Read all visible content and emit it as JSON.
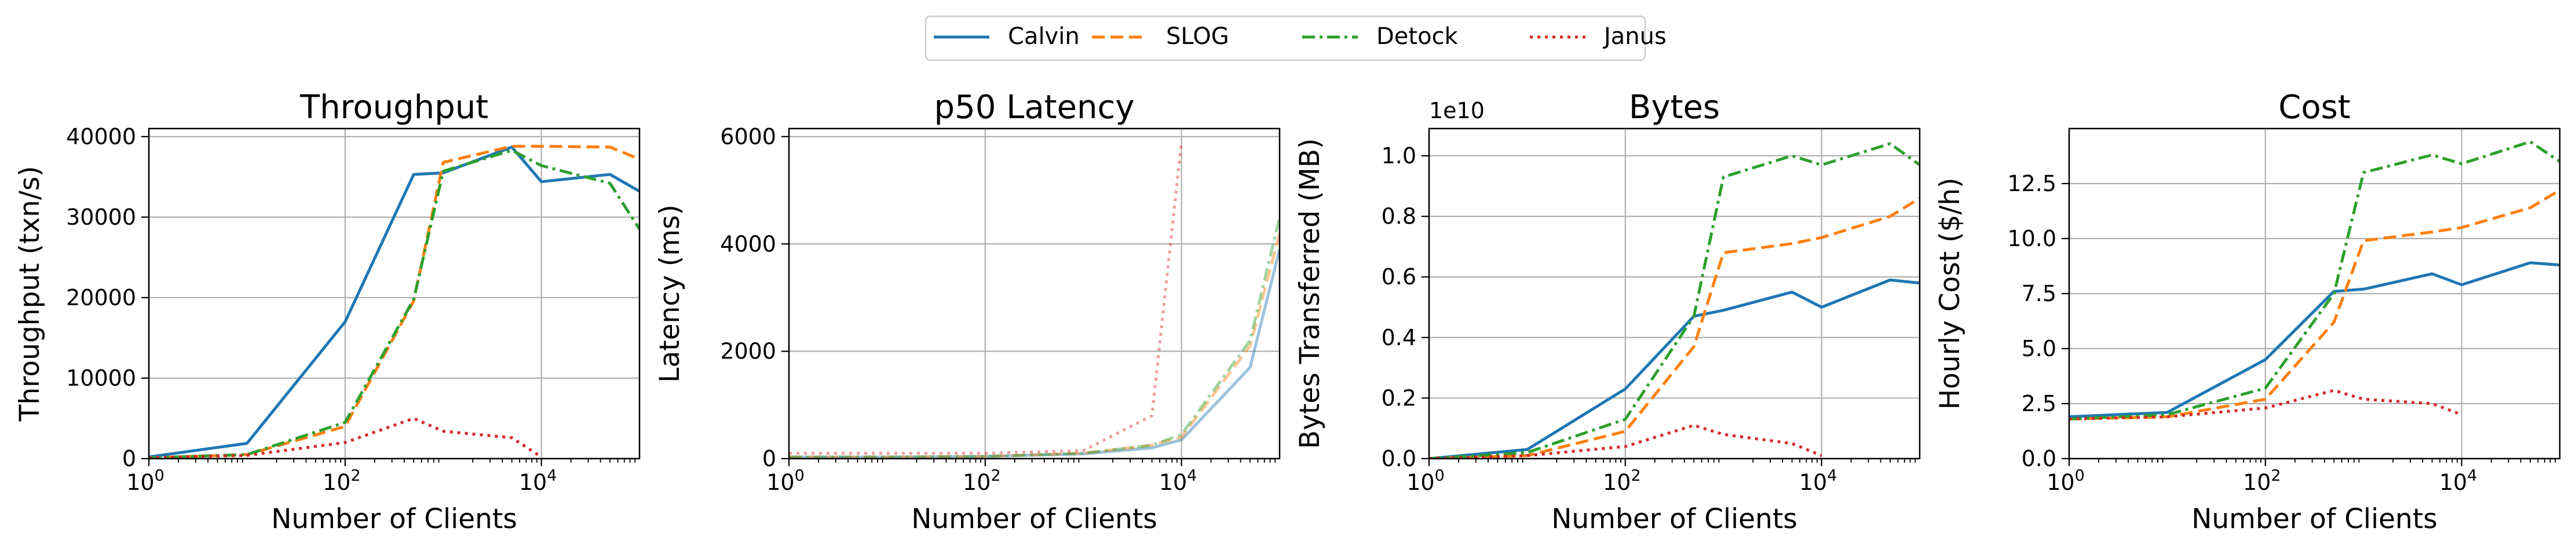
{
  "legend": {
    "items": [
      {
        "label": "Calvin",
        "color": "#1f77b4",
        "dash": "solid"
      },
      {
        "label": "SLOG",
        "color": "#ff7f0e",
        "dash": "dashed"
      },
      {
        "label": "Detock",
        "color": "#2ca02c",
        "dash": "dashdot"
      },
      {
        "label": "Janus",
        "color": "#d62728",
        "dash": "dotted"
      }
    ],
    "placement": "top-center"
  },
  "chart_data": [
    {
      "type": "line",
      "title": "Throughput",
      "xlabel": "Number of Clients",
      "ylabel": "Throughput (txn/s)",
      "xscale": "log",
      "xlim": [
        1,
        100000
      ],
      "ylim": [
        0,
        41000
      ],
      "grid": true,
      "xticks": [
        {
          "value": 1,
          "base": "10",
          "exp": "0"
        },
        {
          "value": 100,
          "base": "10",
          "exp": "2"
        },
        {
          "value": 10000,
          "base": "10",
          "exp": "4"
        }
      ],
      "yticks": [
        {
          "value": 0,
          "label": "0"
        },
        {
          "value": 10000,
          "label": "10000"
        },
        {
          "value": 20000,
          "label": "20000"
        },
        {
          "value": 30000,
          "label": "30000"
        },
        {
          "value": 40000,
          "label": "40000"
        }
      ],
      "offset_label": "",
      "series": [
        {
          "name": "Calvin",
          "color": "#1f77b4",
          "dash": "solid",
          "alpha": 1,
          "x": [
            1,
            10,
            100,
            500,
            1000,
            5000,
            10000,
            50000,
            100000
          ],
          "y": [
            200,
            1900,
            17000,
            35300,
            35500,
            38700,
            34400,
            35300,
            33200
          ]
        },
        {
          "name": "SLOG",
          "color": "#ff7f0e",
          "dash": "dashed",
          "alpha": 1,
          "x": [
            1,
            10,
            100,
            500,
            1000,
            5000,
            10000,
            50000,
            100000
          ],
          "y": [
            100,
            500,
            4000,
            19600,
            36800,
            38800,
            38800,
            38700,
            37200
          ]
        },
        {
          "name": "Detock",
          "color": "#2ca02c",
          "dash": "dashdot",
          "alpha": 1,
          "x": [
            1,
            10,
            100,
            500,
            1000,
            5000,
            10000,
            50000,
            100000
          ],
          "y": [
            100,
            500,
            4500,
            19800,
            35700,
            38300,
            36400,
            34200,
            28500
          ]
        },
        {
          "name": "Janus",
          "color": "#d62728",
          "dash": "dotted",
          "alpha": 1,
          "x": [
            1,
            10,
            100,
            500,
            1000,
            5000,
            10000
          ],
          "y": [
            100,
            400,
            2000,
            5000,
            3400,
            2600,
            200
          ]
        }
      ]
    },
    {
      "type": "line",
      "title": "p50 Latency",
      "xlabel": "Number of Clients",
      "ylabel": "Latency (ms)",
      "xscale": "log",
      "xlim": [
        1,
        100000
      ],
      "ylim": [
        0,
        6150
      ],
      "grid": true,
      "xticks": [
        {
          "value": 1,
          "base": "10",
          "exp": "0"
        },
        {
          "value": 100,
          "base": "10",
          "exp": "2"
        },
        {
          "value": 10000,
          "base": "10",
          "exp": "4"
        }
      ],
      "yticks": [
        {
          "value": 0,
          "label": "0"
        },
        {
          "value": 2000,
          "label": "2000"
        },
        {
          "value": 4000,
          "label": "4000"
        },
        {
          "value": 6000,
          "label": "6000"
        }
      ],
      "offset_label": "",
      "series": [
        {
          "name": "Calvin",
          "color": "#1f77b4",
          "dash": "solid",
          "alpha": 0.45,
          "x": [
            1,
            10,
            100,
            1000,
            5000,
            10000,
            50000,
            100000
          ],
          "y": [
            30,
            30,
            40,
            90,
            200,
            350,
            1700,
            3900
          ]
        },
        {
          "name": "SLOG",
          "color": "#ff7f0e",
          "dash": "dashed",
          "alpha": 0.45,
          "x": [
            1,
            10,
            100,
            1000,
            5000,
            10000,
            50000,
            100000
          ],
          "y": [
            30,
            30,
            40,
            100,
            250,
            400,
            2100,
            4200
          ]
        },
        {
          "name": "Detock",
          "color": "#2ca02c",
          "dash": "dashdot",
          "alpha": 0.45,
          "x": [
            1,
            10,
            100,
            1000,
            5000,
            10000,
            50000,
            100000
          ],
          "y": [
            30,
            30,
            40,
            100,
            250,
            450,
            2200,
            4500
          ]
        },
        {
          "name": "Janus",
          "color": "#d62728",
          "dash": "dotted",
          "alpha": 0.45,
          "x": [
            1,
            10,
            100,
            1000,
            5000,
            10000
          ],
          "y": [
            100,
            100,
            100,
            150,
            800,
            5900
          ]
        }
      ]
    },
    {
      "type": "line",
      "title": "Bytes",
      "xlabel": "Number of Clients",
      "ylabel": "Bytes Transferred (MB)",
      "xscale": "log",
      "xlim": [
        1,
        100000
      ],
      "ylim": [
        0,
        1.09
      ],
      "grid": true,
      "xticks": [
        {
          "value": 1,
          "base": "10",
          "exp": "0"
        },
        {
          "value": 100,
          "base": "10",
          "exp": "2"
        },
        {
          "value": 10000,
          "base": "10",
          "exp": "4"
        }
      ],
      "yticks": [
        {
          "value": 0,
          "label": "0.0"
        },
        {
          "value": 0.2,
          "label": "0.2"
        },
        {
          "value": 0.4,
          "label": "0.4"
        },
        {
          "value": 0.6,
          "label": "0.6"
        },
        {
          "value": 0.8,
          "label": "0.8"
        },
        {
          "value": 1.0,
          "label": "1.0"
        }
      ],
      "offset_label": "1e10",
      "series": [
        {
          "name": "Calvin",
          "color": "#1f77b4",
          "dash": "solid",
          "alpha": 1,
          "x": [
            1,
            10,
            100,
            500,
            1000,
            5000,
            10000,
            50000,
            100000
          ],
          "y": [
            0.0,
            0.03,
            0.23,
            0.47,
            0.49,
            0.55,
            0.5,
            0.59,
            0.58
          ]
        },
        {
          "name": "SLOG",
          "color": "#ff7f0e",
          "dash": "dashed",
          "alpha": 1,
          "x": [
            1,
            10,
            100,
            500,
            1000,
            5000,
            10000,
            50000,
            100000
          ],
          "y": [
            0.0,
            0.01,
            0.09,
            0.37,
            0.68,
            0.71,
            0.73,
            0.8,
            0.86
          ]
        },
        {
          "name": "Detock",
          "color": "#2ca02c",
          "dash": "dashdot",
          "alpha": 1,
          "x": [
            1,
            10,
            100,
            500,
            1000,
            5000,
            10000,
            50000,
            100000
          ],
          "y": [
            0.0,
            0.02,
            0.13,
            0.47,
            0.93,
            1.0,
            0.97,
            1.04,
            0.97
          ]
        },
        {
          "name": "Janus",
          "color": "#d62728",
          "dash": "dotted",
          "alpha": 1,
          "x": [
            1,
            10,
            100,
            500,
            1000,
            5000,
            10000
          ],
          "y": [
            0.0,
            0.01,
            0.04,
            0.11,
            0.08,
            0.05,
            0.01
          ]
        }
      ]
    },
    {
      "type": "line",
      "title": "Cost",
      "xlabel": "Number of Clients",
      "ylabel": "Hourly Cost ($/h)",
      "xscale": "log",
      "xlim": [
        1,
        100000
      ],
      "ylim": [
        0,
        15
      ],
      "grid": true,
      "xticks": [
        {
          "value": 1,
          "base": "10",
          "exp": "0"
        },
        {
          "value": 100,
          "base": "10",
          "exp": "2"
        },
        {
          "value": 10000,
          "base": "10",
          "exp": "4"
        }
      ],
      "yticks": [
        {
          "value": 0,
          "label": "0.0"
        },
        {
          "value": 2.5,
          "label": "2.5"
        },
        {
          "value": 5,
          "label": "5.0"
        },
        {
          "value": 7.5,
          "label": "7.5"
        },
        {
          "value": 10,
          "label": "10.0"
        },
        {
          "value": 12.5,
          "label": "12.5"
        }
      ],
      "offset_label": "",
      "series": [
        {
          "name": "Calvin",
          "color": "#1f77b4",
          "dash": "solid",
          "alpha": 1,
          "x": [
            1,
            10,
            100,
            500,
            1000,
            5000,
            10000,
            50000,
            100000
          ],
          "y": [
            1.9,
            2.1,
            4.5,
            7.6,
            7.7,
            8.4,
            7.9,
            8.9,
            8.8
          ]
        },
        {
          "name": "SLOG",
          "color": "#ff7f0e",
          "dash": "dashed",
          "alpha": 1,
          "x": [
            1,
            10,
            100,
            500,
            1000,
            5000,
            10000,
            50000,
            100000
          ],
          "y": [
            1.8,
            1.9,
            2.7,
            6.2,
            9.9,
            10.3,
            10.5,
            11.4,
            12.2
          ]
        },
        {
          "name": "Detock",
          "color": "#2ca02c",
          "dash": "dashdot",
          "alpha": 1,
          "x": [
            1,
            10,
            100,
            500,
            1000,
            5000,
            10000,
            50000,
            100000
          ],
          "y": [
            1.8,
            2.0,
            3.2,
            7.5,
            13.0,
            13.8,
            13.4,
            14.4,
            13.5
          ]
        },
        {
          "name": "Janus",
          "color": "#d62728",
          "dash": "dotted",
          "alpha": 1,
          "x": [
            1,
            10,
            100,
            500,
            1000,
            5000,
            10000
          ],
          "y": [
            1.8,
            1.9,
            2.3,
            3.1,
            2.7,
            2.5,
            2.0
          ]
        }
      ]
    }
  ]
}
